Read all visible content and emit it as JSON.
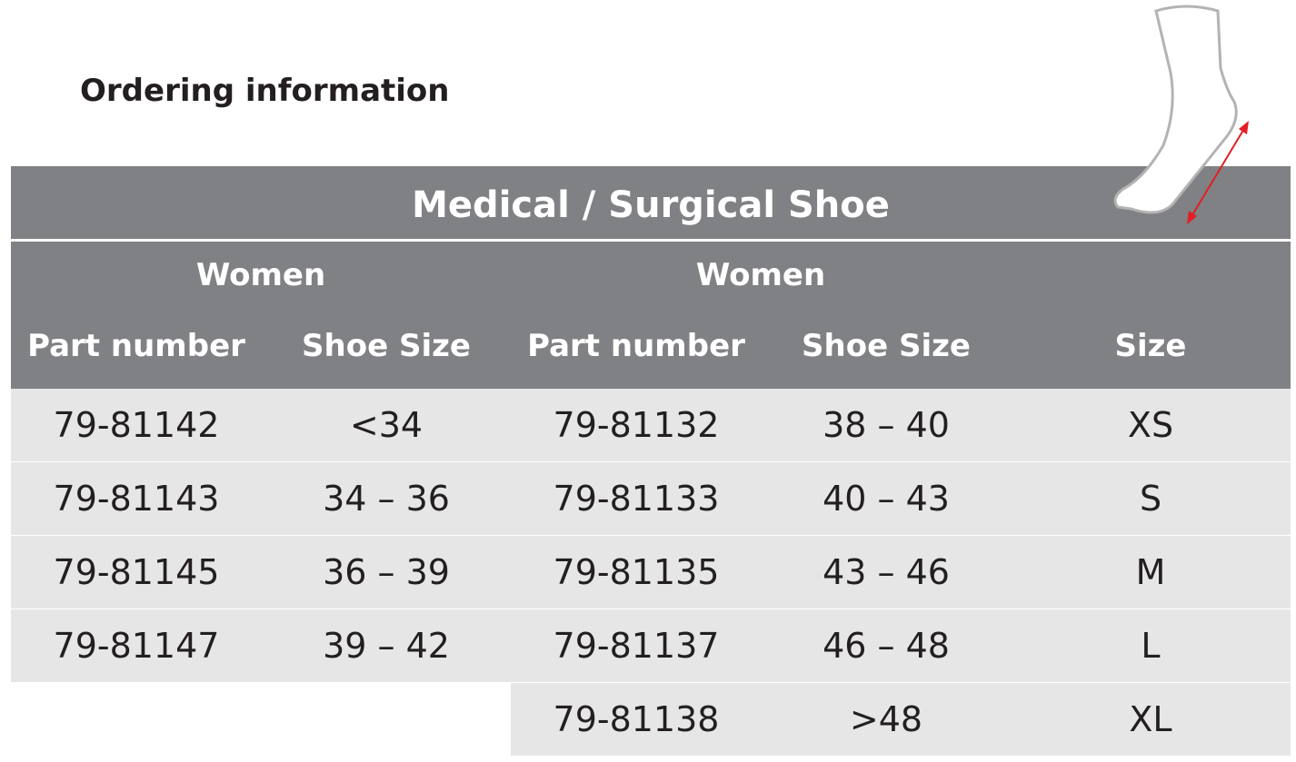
{
  "header": {
    "title": "Ordering information"
  },
  "table": {
    "title": "Medical / Surgical Shoe",
    "groups": [
      "Women",
      "Women"
    ],
    "columns": [
      "Part number",
      "Shoe Size",
      "Part number",
      "Shoe Size",
      "Size"
    ],
    "rows": [
      [
        "79-81142",
        "<34",
        "79-81132",
        "38 – 40",
        "XS"
      ],
      [
        "79-81143",
        "34 – 36",
        "79-81133",
        "40 – 43",
        "S"
      ],
      [
        "79-81145",
        "36 – 39",
        "79-81135",
        "43 – 46",
        "M"
      ],
      [
        "79-81147",
        "39 – 42",
        "79-81137",
        "46 – 48",
        "L"
      ],
      [
        null,
        null,
        "79-81138",
        ">48",
        "XL"
      ]
    ]
  }
}
